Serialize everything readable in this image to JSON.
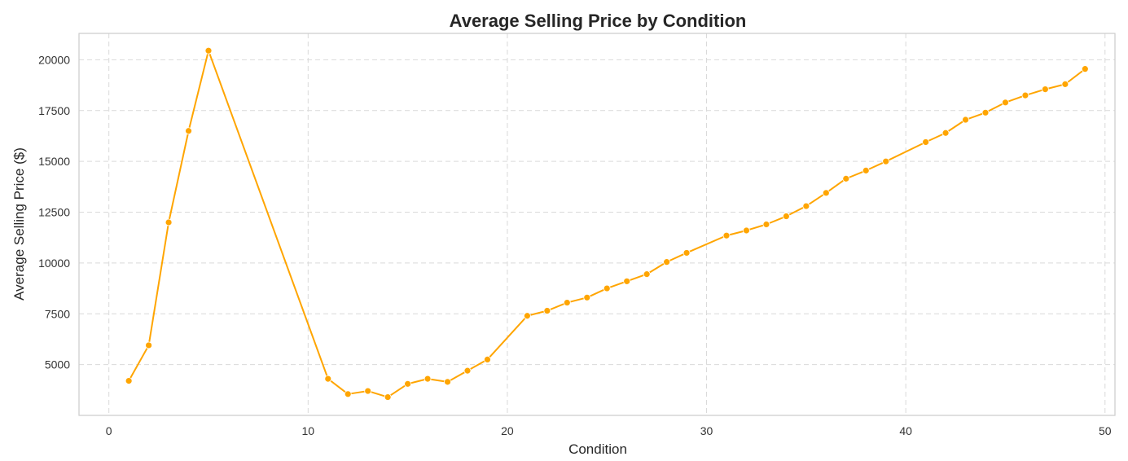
{
  "chart_data": {
    "type": "line",
    "title": "Average Selling Price by Condition",
    "xlabel": "Condition",
    "ylabel": "Average Selling Price ($)",
    "xlim": [
      -1.5,
      50.5
    ],
    "ylim": [
      2500,
      21300
    ],
    "xticks": [
      0,
      10,
      20,
      30,
      40,
      50
    ],
    "yticks": [
      5000,
      7500,
      10000,
      12500,
      15000,
      17500,
      20000
    ],
    "grid": true,
    "line_color": "#FFA500",
    "marker": "circle",
    "series": [
      {
        "x": [
          1,
          2,
          3,
          4,
          5,
          11,
          12,
          13,
          14,
          15,
          16,
          17,
          18,
          19,
          21,
          22,
          23,
          24,
          25,
          26,
          27,
          28,
          29,
          31,
          32,
          33,
          34,
          35,
          36,
          37,
          38,
          39,
          41,
          42,
          43,
          44,
          45,
          46,
          47,
          48,
          49
        ],
        "y": [
          4200,
          5950,
          12000,
          16500,
          20450,
          4300,
          3550,
          3700,
          3400,
          4050,
          4300,
          4150,
          4700,
          5250,
          7400,
          7650,
          8050,
          8300,
          8750,
          9100,
          9450,
          10050,
          10500,
          11350,
          11600,
          11900,
          12300,
          12800,
          13450,
          14150,
          14550,
          15000,
          15950,
          16400,
          17050,
          17400,
          17900,
          18250,
          18550,
          18800,
          19550
        ]
      }
    ]
  }
}
